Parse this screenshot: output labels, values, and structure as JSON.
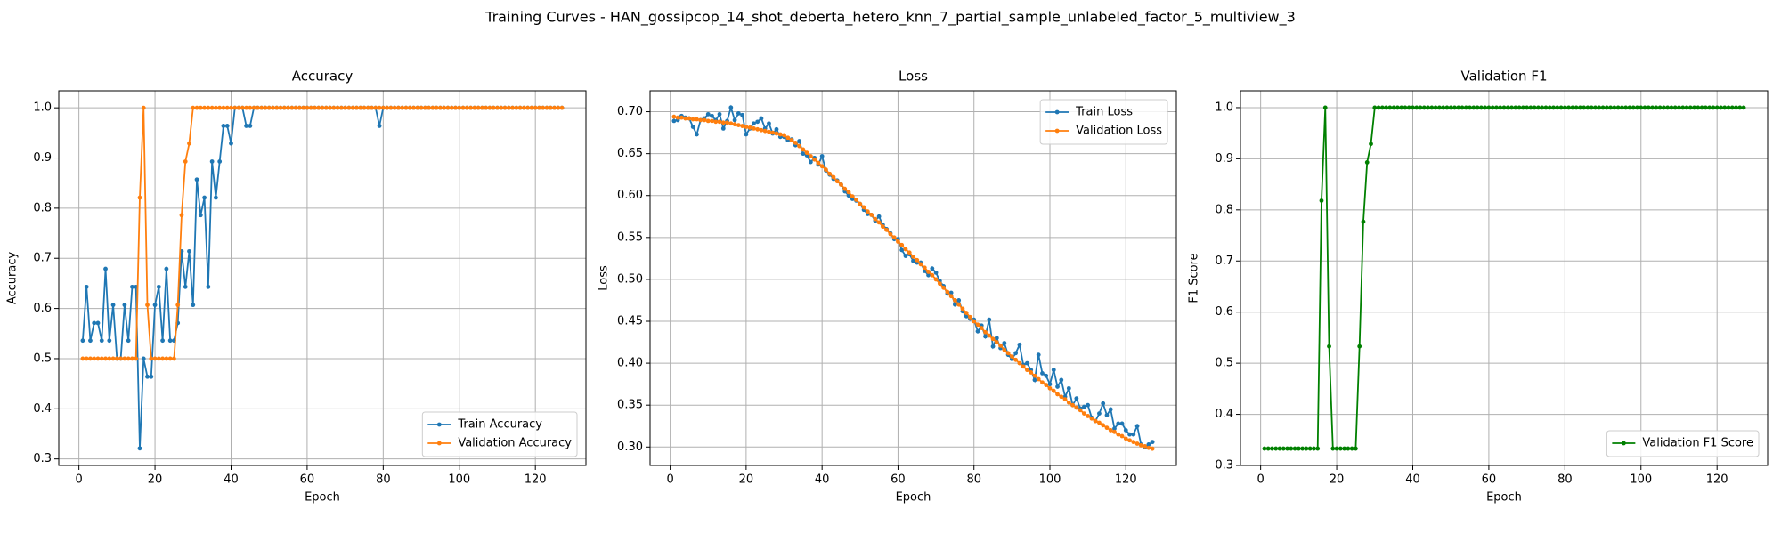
{
  "title": "Training Curves - HAN_gossipcop_14_shot_deberta_hetero_knn_7_partial_sample_unlabeled_factor_5_multiview_3",
  "chart_data": [
    {
      "type": "line",
      "title": "Accuracy",
      "xlabel": "Epoch",
      "ylabel": "Accuracy",
      "grid": true,
      "legend": "lower right",
      "xlim": [
        -5.3,
        133.3
      ],
      "xticks": [
        0,
        20,
        40,
        60,
        80,
        100,
        120
      ],
      "ylim": [
        0.287,
        1.034
      ],
      "yticks": [
        0.3,
        0.4,
        0.5,
        0.6,
        0.7,
        0.8,
        0.9,
        {
          "value": 1,
          "label": "1.0"
        }
      ],
      "x": [
        1,
        2,
        3,
        4,
        5,
        6,
        7,
        8,
        9,
        10,
        11,
        12,
        13,
        14,
        15,
        16,
        17,
        18,
        19,
        20,
        21,
        22,
        23,
        24,
        25,
        26,
        27,
        28,
        29,
        30,
        31,
        32,
        33,
        34,
        35,
        36,
        37,
        38,
        39,
        40,
        41,
        42,
        43,
        44,
        45,
        46,
        47,
        48,
        49,
        50,
        51,
        52,
        53,
        54,
        55,
        56,
        57,
        58,
        59,
        60,
        61,
        62,
        63,
        64,
        65,
        66,
        67,
        68,
        69,
        70,
        71,
        72,
        73,
        74,
        75,
        76,
        77,
        78,
        79,
        80,
        81,
        82,
        83,
        84,
        85,
        86,
        87,
        88,
        89,
        90,
        91,
        92,
        93,
        94,
        95,
        96,
        97,
        98,
        99,
        100,
        101,
        102,
        103,
        104,
        105,
        106,
        107,
        108,
        109,
        110,
        111,
        112,
        113,
        114,
        115,
        116,
        117,
        118,
        119,
        120,
        121,
        122,
        123,
        124,
        125,
        126,
        127
      ],
      "series": [
        {
          "name": "Train Accuracy",
          "color": "#1f77b4",
          "values": [
            0.536,
            0.643,
            0.536,
            0.571,
            0.571,
            0.536,
            0.679,
            0.536,
            0.607,
            0.5,
            0.5,
            0.607,
            0.536,
            0.643,
            0.643,
            0.321,
            0.5,
            0.464,
            0.464,
            0.607,
            0.643,
            0.536,
            0.679,
            0.536,
            0.536,
            0.571,
            0.714,
            0.643,
            0.714,
            0.607,
            0.857,
            0.786,
            0.821,
            0.643,
            0.893,
            0.821,
            0.893,
            0.964,
            0.964,
            0.929,
            1,
            1,
            1,
            0.964,
            0.964,
            1,
            1,
            1,
            1,
            1,
            1,
            1,
            1,
            1,
            1,
            1,
            1,
            1,
            1,
            1,
            1,
            1,
            1,
            1,
            1,
            1,
            1,
            1,
            1,
            1,
            1,
            1,
            1,
            1,
            1,
            1,
            1,
            1,
            0.964,
            1,
            1,
            1,
            1,
            1,
            1,
            1,
            1,
            1,
            1,
            1,
            1,
            1,
            1,
            1,
            1,
            1,
            1,
            1,
            1,
            1,
            1,
            1,
            1,
            1,
            1,
            1,
            1,
            1,
            1,
            1,
            1,
            1,
            1,
            1,
            1,
            1,
            1,
            1,
            1,
            1,
            1,
            1,
            1,
            1,
            1,
            1,
            1
          ]
        },
        {
          "name": "Validation Accuracy",
          "color": "#ff7f0e",
          "values": [
            0.5,
            0.5,
            0.5,
            0.5,
            0.5,
            0.5,
            0.5,
            0.5,
            0.5,
            0.5,
            0.5,
            0.5,
            0.5,
            0.5,
            0.5,
            0.821,
            1,
            0.607,
            0.5,
            0.5,
            0.5,
            0.5,
            0.5,
            0.5,
            0.5,
            0.607,
            0.786,
            0.893,
            0.929,
            1,
            1,
            1,
            1,
            1,
            1,
            1,
            1,
            1,
            1,
            1,
            1,
            1,
            1,
            1,
            1,
            1,
            1,
            1,
            1,
            1,
            1,
            1,
            1,
            1,
            1,
            1,
            1,
            1,
            1,
            1,
            1,
            1,
            1,
            1,
            1,
            1,
            1,
            1,
            1,
            1,
            1,
            1,
            1,
            1,
            1,
            1,
            1,
            1,
            1,
            1,
            1,
            1,
            1,
            1,
            1,
            1,
            1,
            1,
            1,
            1,
            1,
            1,
            1,
            1,
            1,
            1,
            1,
            1,
            1,
            1,
            1,
            1,
            1,
            1,
            1,
            1,
            1,
            1,
            1,
            1,
            1,
            1,
            1,
            1,
            1,
            1,
            1,
            1,
            1,
            1,
            1,
            1,
            1,
            1,
            1,
            1,
            1
          ]
        }
      ]
    },
    {
      "type": "line",
      "title": "Loss",
      "xlabel": "Epoch",
      "ylabel": "Loss",
      "grid": true,
      "legend": "upper right",
      "xlim": [
        -5.3,
        133.3
      ],
      "xticks": [
        0,
        20,
        40,
        60,
        80,
        100,
        120
      ],
      "ylim": [
        0.278,
        0.725
      ],
      "yticks": [
        {
          "value": 0.3,
          "label": "0.30"
        },
        0.35,
        {
          "value": 0.4,
          "label": "0.40"
        },
        0.45,
        {
          "value": 0.5,
          "label": "0.50"
        },
        0.55,
        {
          "value": 0.6,
          "label": "0.60"
        },
        0.65,
        {
          "value": 0.7,
          "label": "0.70"
        }
      ],
      "x": [
        1,
        2,
        3,
        4,
        5,
        6,
        7,
        8,
        9,
        10,
        11,
        12,
        13,
        14,
        15,
        16,
        17,
        18,
        19,
        20,
        21,
        22,
        23,
        24,
        25,
        26,
        27,
        28,
        29,
        30,
        31,
        32,
        33,
        34,
        35,
        36,
        37,
        38,
        39,
        40,
        41,
        42,
        43,
        44,
        45,
        46,
        47,
        48,
        49,
        50,
        51,
        52,
        53,
        54,
        55,
        56,
        57,
        58,
        59,
        60,
        61,
        62,
        63,
        64,
        65,
        66,
        67,
        68,
        69,
        70,
        71,
        72,
        73,
        74,
        75,
        76,
        77,
        78,
        79,
        80,
        81,
        82,
        83,
        84,
        85,
        86,
        87,
        88,
        89,
        90,
        91,
        92,
        93,
        94,
        95,
        96,
        97,
        98,
        99,
        100,
        101,
        102,
        103,
        104,
        105,
        106,
        107,
        108,
        109,
        110,
        111,
        112,
        113,
        114,
        115,
        116,
        117,
        118,
        119,
        120,
        121,
        122,
        123,
        124,
        125,
        126,
        127
      ],
      "series": [
        {
          "name": "Train Loss",
          "color": "#1f77b4",
          "values": [
            0.689,
            0.69,
            0.695,
            0.693,
            0.692,
            0.682,
            0.673,
            0.69,
            0.692,
            0.697,
            0.695,
            0.69,
            0.697,
            0.68,
            0.689,
            0.705,
            0.69,
            0.698,
            0.696,
            0.673,
            0.68,
            0.686,
            0.688,
            0.692,
            0.68,
            0.686,
            0.674,
            0.679,
            0.67,
            0.67,
            0.666,
            0.667,
            0.66,
            0.665,
            0.65,
            0.648,
            0.64,
            0.645,
            0.637,
            0.647,
            0.63,
            0.625,
            0.62,
            0.618,
            0.613,
            0.605,
            0.6,
            0.596,
            0.594,
            0.59,
            0.583,
            0.578,
            0.577,
            0.57,
            0.575,
            0.565,
            0.56,
            0.555,
            0.548,
            0.548,
            0.535,
            0.528,
            0.53,
            0.522,
            0.52,
            0.52,
            0.51,
            0.505,
            0.513,
            0.508,
            0.498,
            0.492,
            0.483,
            0.484,
            0.47,
            0.475,
            0.462,
            0.456,
            0.453,
            0.452,
            0.438,
            0.445,
            0.432,
            0.452,
            0.42,
            0.43,
            0.418,
            0.424,
            0.41,
            0.405,
            0.412,
            0.422,
            0.398,
            0.4,
            0.392,
            0.38,
            0.41,
            0.388,
            0.385,
            0.375,
            0.392,
            0.372,
            0.38,
            0.36,
            0.37,
            0.35,
            0.358,
            0.346,
            0.348,
            0.35,
            0.335,
            0.331,
            0.34,
            0.352,
            0.338,
            0.345,
            0.322,
            0.328,
            0.328,
            0.32,
            0.315,
            0.315,
            0.325,
            0.303,
            0.3,
            0.303,
            0.306
          ]
        },
        {
          "name": "Validation Loss",
          "color": "#ff7f0e",
          "values": [
            0.694,
            0.693,
            0.693,
            0.692,
            0.692,
            0.691,
            0.691,
            0.69,
            0.69,
            0.689,
            0.689,
            0.688,
            0.688,
            0.687,
            0.687,
            0.686,
            0.685,
            0.684,
            0.683,
            0.682,
            0.681,
            0.68,
            0.679,
            0.678,
            0.677,
            0.676,
            0.675,
            0.674,
            0.673,
            0.672,
            0.669,
            0.666,
            0.663,
            0.659,
            0.655,
            0.651,
            0.647,
            0.643,
            0.639,
            0.635,
            0.631,
            0.626,
            0.622,
            0.617,
            0.613,
            0.608,
            0.604,
            0.599,
            0.595,
            0.59,
            0.586,
            0.581,
            0.577,
            0.572,
            0.568,
            0.563,
            0.559,
            0.554,
            0.55,
            0.545,
            0.541,
            0.536,
            0.532,
            0.527,
            0.523,
            0.518,
            0.514,
            0.509,
            0.505,
            0.5,
            0.495,
            0.49,
            0.485,
            0.48,
            0.475,
            0.47,
            0.465,
            0.46,
            0.455,
            0.45,
            0.446,
            0.442,
            0.437,
            0.433,
            0.429,
            0.425,
            0.421,
            0.416,
            0.412,
            0.408,
            0.404,
            0.4,
            0.396,
            0.392,
            0.389,
            0.385,
            0.381,
            0.377,
            0.374,
            0.37,
            0.367,
            0.363,
            0.36,
            0.357,
            0.353,
            0.35,
            0.347,
            0.344,
            0.34,
            0.337,
            0.334,
            0.331,
            0.329,
            0.326,
            0.323,
            0.32,
            0.318,
            0.315,
            0.313,
            0.31,
            0.308,
            0.306,
            0.304,
            0.302,
            0.301,
            0.299,
            0.298
          ]
        }
      ]
    },
    {
      "type": "line",
      "title": "Validation F1",
      "xlabel": "Epoch",
      "ylabel": "F1 Score",
      "grid": true,
      "legend": "lower right",
      "xlim": [
        -5.3,
        133.3
      ],
      "xticks": [
        0,
        20,
        40,
        60,
        80,
        100,
        120
      ],
      "ylim": [
        0.3,
        1.033
      ],
      "yticks": [
        0.3,
        0.4,
        0.5,
        0.6,
        0.7,
        0.8,
        0.9,
        {
          "value": 1,
          "label": "1.0"
        }
      ],
      "x": [
        1,
        2,
        3,
        4,
        5,
        6,
        7,
        8,
        9,
        10,
        11,
        12,
        13,
        14,
        15,
        16,
        17,
        18,
        19,
        20,
        21,
        22,
        23,
        24,
        25,
        26,
        27,
        28,
        29,
        30,
        31,
        32,
        33,
        34,
        35,
        36,
        37,
        38,
        39,
        40,
        41,
        42,
        43,
        44,
        45,
        46,
        47,
        48,
        49,
        50,
        51,
        52,
        53,
        54,
        55,
        56,
        57,
        58,
        59,
        60,
        61,
        62,
        63,
        64,
        65,
        66,
        67,
        68,
        69,
        70,
        71,
        72,
        73,
        74,
        75,
        76,
        77,
        78,
        79,
        80,
        81,
        82,
        83,
        84,
        85,
        86,
        87,
        88,
        89,
        90,
        91,
        92,
        93,
        94,
        95,
        96,
        97,
        98,
        99,
        100,
        101,
        102,
        103,
        104,
        105,
        106,
        107,
        108,
        109,
        110,
        111,
        112,
        113,
        114,
        115,
        116,
        117,
        118,
        119,
        120,
        121,
        122,
        123,
        124,
        125,
        126,
        127
      ],
      "series": [
        {
          "name": "Validation F1 Score",
          "color": "#008000",
          "values": [
            0.333,
            0.333,
            0.333,
            0.333,
            0.333,
            0.333,
            0.333,
            0.333,
            0.333,
            0.333,
            0.333,
            0.333,
            0.333,
            0.333,
            0.333,
            0.818,
            1,
            0.533,
            0.333,
            0.333,
            0.333,
            0.333,
            0.333,
            0.333,
            0.333,
            0.533,
            0.777,
            0.893,
            0.929,
            1,
            1,
            1,
            1,
            1,
            1,
            1,
            1,
            1,
            1,
            1,
            1,
            1,
            1,
            1,
            1,
            1,
            1,
            1,
            1,
            1,
            1,
            1,
            1,
            1,
            1,
            1,
            1,
            1,
            1,
            1,
            1,
            1,
            1,
            1,
            1,
            1,
            1,
            1,
            1,
            1,
            1,
            1,
            1,
            1,
            1,
            1,
            1,
            1,
            1,
            1,
            1,
            1,
            1,
            1,
            1,
            1,
            1,
            1,
            1,
            1,
            1,
            1,
            1,
            1,
            1,
            1,
            1,
            1,
            1,
            1,
            1,
            1,
            1,
            1,
            1,
            1,
            1,
            1,
            1,
            1,
            1,
            1,
            1,
            1,
            1,
            1,
            1,
            1,
            1,
            1,
            1,
            1,
            1,
            1,
            1,
            1,
            1
          ]
        }
      ]
    }
  ]
}
